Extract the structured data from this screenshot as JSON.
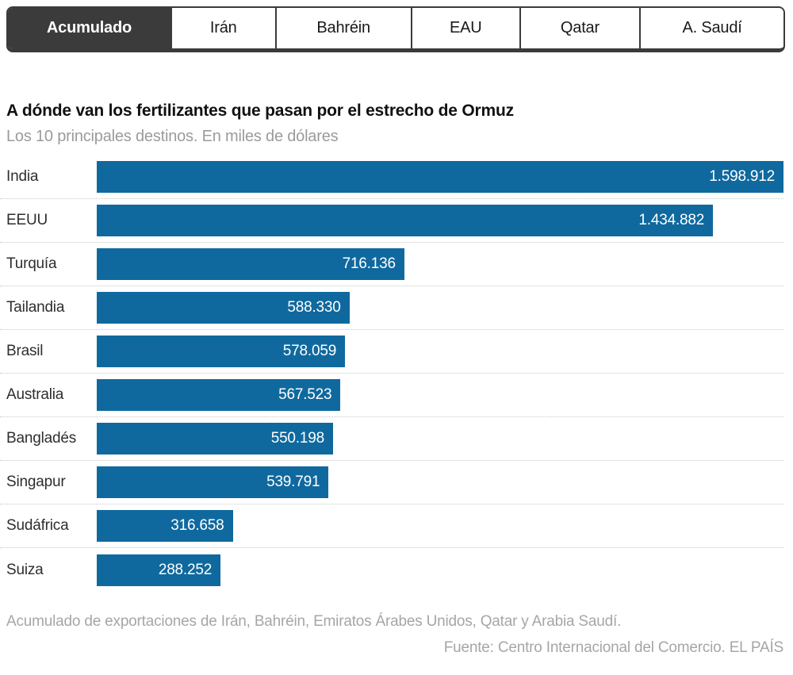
{
  "tabs": {
    "items": [
      {
        "label": "Acumulado",
        "active": true
      },
      {
        "label": "Irán",
        "active": false
      },
      {
        "label": "Bahréin",
        "active": false
      },
      {
        "label": "EAU",
        "active": false
      },
      {
        "label": "Qatar",
        "active": false
      },
      {
        "label": "A. Saudí",
        "active": false
      }
    ]
  },
  "header": {
    "title": "A dónde van los fertilizantes que pasan por el estrecho de Ormuz",
    "subtitle": "Los 10 principales destinos. En miles de dólares"
  },
  "chart_data": {
    "type": "bar",
    "orientation": "horizontal",
    "title": "A dónde van los fertilizantes que pasan por el estrecho de Ormuz",
    "subtitle": "Los 10 principales destinos. En miles de dólares",
    "unit": "miles de dólares",
    "categories": [
      "India",
      "EEUU",
      "Turquía",
      "Tailandia",
      "Brasil",
      "Australia",
      "Bangladés",
      "Singapur",
      "Sudáfrica",
      "Suiza"
    ],
    "values": [
      1598912,
      1434882,
      716136,
      588330,
      578059,
      567523,
      550198,
      539791,
      316658,
      288252
    ],
    "value_labels": [
      "1.598.912",
      "1.434.882",
      "716.136",
      "588.330",
      "578.059",
      "567.523",
      "550.198",
      "539.791",
      "316.658",
      "288.252"
    ],
    "xlim": [
      0,
      1598912
    ],
    "grid": false,
    "value_label_position": "inside-end",
    "bar_color": "#10699E"
  },
  "footer": {
    "note": "Acumulado de exportaciones de Irán, Bahréin, Emiratos Árabes Unidos, Qatar y Arabia Saudí.",
    "source": "Fuente: Centro Internacional del Comercio. EL PAÍS"
  },
  "colors": {
    "bar": "#10699E",
    "tab_active_bg": "#3B3B3B",
    "tab_text": "#1A1A1A",
    "subtitle_text": "#9B9B9B",
    "footer_text": "#A6A6A6"
  }
}
